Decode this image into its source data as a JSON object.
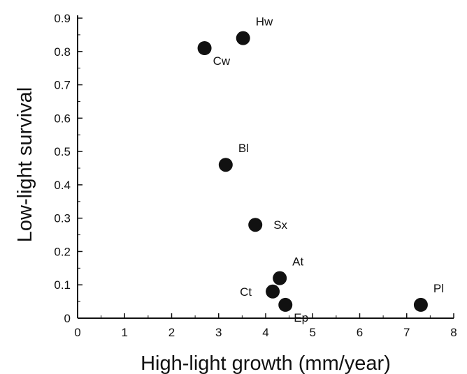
{
  "chart_data": {
    "type": "scatter",
    "xlabel": "High-light growth (mm/year)",
    "ylabel": "Low-light survival",
    "xlim": [
      0,
      8
    ],
    "ylim": [
      0,
      0.9
    ],
    "x_ticks": [
      0,
      1,
      2,
      3,
      4,
      5,
      6,
      7,
      8
    ],
    "y_ticks": [
      0,
      0.1,
      0.2,
      0.3,
      0.4,
      0.5,
      0.6,
      0.7,
      0.8,
      0.9
    ],
    "x_tick_labels": [
      "0",
      "1",
      "2",
      "3",
      "4",
      "5",
      "6",
      "7",
      "8"
    ],
    "y_tick_labels": [
      "0",
      "0.1",
      "0.2",
      "0.3",
      "0.4",
      "0.5",
      "0.6",
      "0.7",
      "0.8",
      "0.9"
    ],
    "grid": false,
    "legend": "none",
    "marker_color": "#111111",
    "points": [
      {
        "label": "Hw",
        "x": 3.52,
        "y": 0.84,
        "label_side": "upper-right"
      },
      {
        "label": "Cw",
        "x": 2.7,
        "y": 0.81,
        "label_side": "lower-right"
      },
      {
        "label": "Bl",
        "x": 3.15,
        "y": 0.46,
        "label_side": "upper-right"
      },
      {
        "label": "Sx",
        "x": 3.78,
        "y": 0.28,
        "label_side": "right"
      },
      {
        "label": "At",
        "x": 4.3,
        "y": 0.12,
        "label_side": "upper-right"
      },
      {
        "label": "Ct",
        "x": 4.15,
        "y": 0.08,
        "label_side": "left"
      },
      {
        "label": "Ep",
        "x": 4.42,
        "y": 0.04,
        "label_side": "lower-right"
      },
      {
        "label": "Pl",
        "x": 7.3,
        "y": 0.04,
        "label_side": "upper-right"
      }
    ]
  }
}
